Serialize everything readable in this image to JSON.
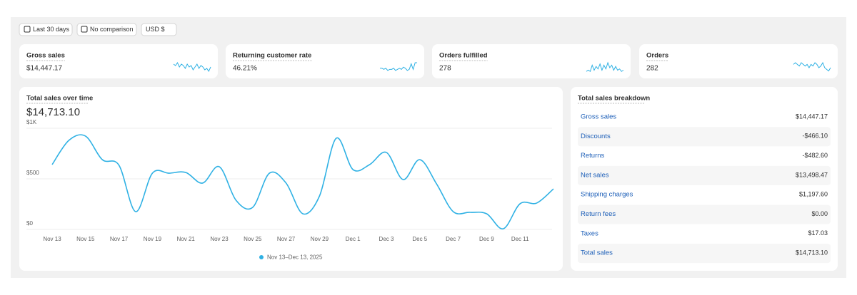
{
  "toolbar": {
    "date_range": "Last 30 days",
    "comparison": "No comparison",
    "currency": "USD $"
  },
  "kpis": [
    {
      "label": "Gross sales",
      "value": "$14,447.17",
      "trend": [
        6,
        5,
        7,
        4,
        6,
        5,
        3,
        6,
        4,
        5,
        2,
        4,
        6,
        3,
        5,
        4,
        2,
        3,
        1,
        4
      ]
    },
    {
      "label": "Returning customer rate",
      "value": "46.21%",
      "trend": [
        4,
        4,
        3,
        4,
        2,
        3,
        3,
        4,
        2,
        3,
        4,
        3,
        5,
        4,
        2,
        3,
        8,
        3,
        9,
        9
      ]
    },
    {
      "label": "Orders fulfilled",
      "value": "278",
      "trend": [
        1,
        2,
        1,
        6,
        2,
        5,
        3,
        7,
        2,
        6,
        3,
        8,
        4,
        6,
        2,
        5,
        2,
        3,
        1,
        2
      ]
    },
    {
      "label": "Orders",
      "value": "282",
      "trend": [
        5,
        6,
        5,
        4,
        6,
        5,
        4,
        5,
        3,
        5,
        4,
        6,
        5,
        3,
        4,
        6,
        3,
        2,
        1,
        3
      ]
    }
  ],
  "chart_data": {
    "type": "line",
    "title": "Total sales over time",
    "total": "$14,713.10",
    "categories": [
      "Nov 13",
      null,
      "Nov 15",
      null,
      "Nov 17",
      null,
      "Nov 19",
      null,
      "Nov 21",
      null,
      "Nov 23",
      null,
      "Nov 25",
      null,
      "Nov 27",
      null,
      "Nov 29",
      null,
      "Dec 1",
      null,
      "Dec 3",
      null,
      "Dec 5",
      null,
      "Dec 7",
      null,
      "Dec 9",
      null,
      "Dec 11",
      null,
      null
    ],
    "series": [
      {
        "name": "Nov 13–Dec 13, 2025",
        "color": "#2fb1e4",
        "values": [
          641,
          880,
          922,
          690,
          634,
          176,
          556,
          556,
          563,
          458,
          620,
          289,
          218,
          556,
          458,
          155,
          331,
          901,
          592,
          641,
          761,
          493,
          690,
          451,
          176,
          169,
          155,
          7,
          254,
          261,
          401
        ]
      }
    ],
    "ylim": [
      0,
      1000
    ],
    "yticks": [
      {
        "value": 0,
        "label": "$0"
      },
      {
        "value": 500,
        "label": "$500"
      },
      {
        "value": 1000,
        "label": "$1K"
      }
    ],
    "grid": true
  },
  "breakdown": {
    "title": "Total sales breakdown",
    "rows": [
      [
        "Gross sales",
        "$14,447.17"
      ],
      [
        "Discounts",
        "-$466.10"
      ],
      [
        "Returns",
        "-$482.60"
      ],
      [
        "Net sales",
        "$13,498.47"
      ],
      [
        "Shipping charges",
        "$1,197.60"
      ],
      [
        "Return fees",
        "$0.00"
      ],
      [
        "Taxes",
        "$17.03"
      ],
      [
        "Total sales",
        "$14,713.10"
      ]
    ]
  }
}
